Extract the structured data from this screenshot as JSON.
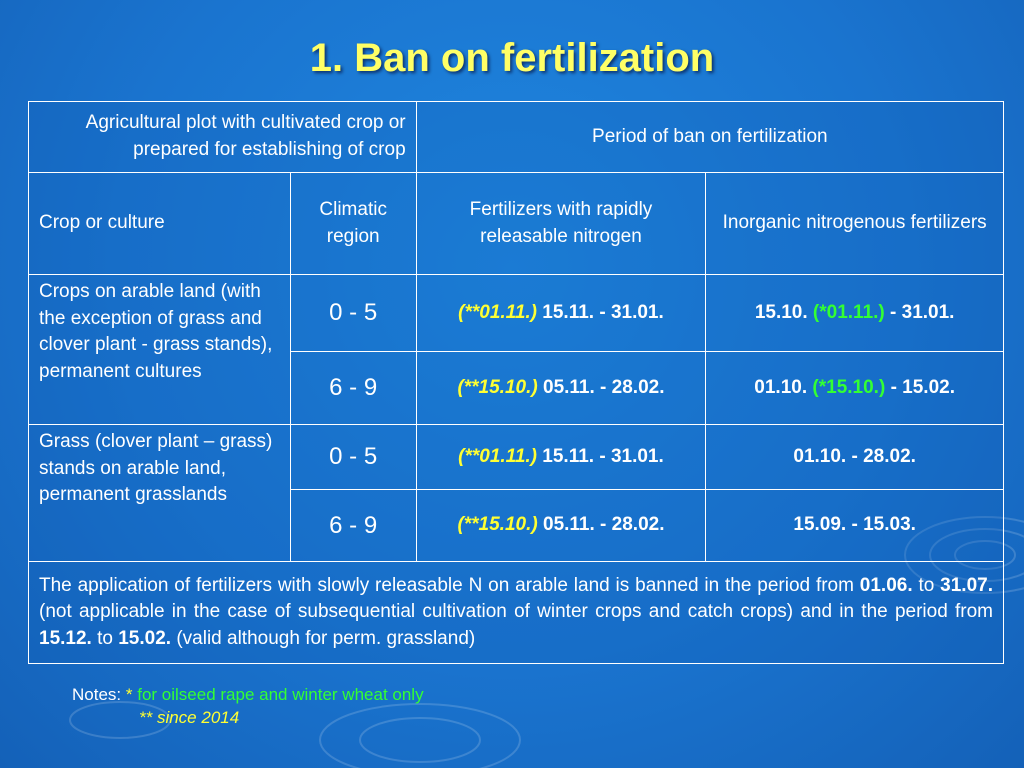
{
  "title": "1. Ban on fertilization",
  "header": {
    "plot": "Agricultural plot with cultivated crop or prepared for establishing of crop",
    "period": "Period of ban on fertilization",
    "crop": "Crop or culture",
    "climatic": "Climatic region",
    "rapid": "Fertilizers with rapidly releasable nitrogen",
    "inorganic": "Inorganic nitrogenous fertilizers"
  },
  "rows": [
    {
      "crop": "Crops on arable land (with the exception of grass and clover plant - grass stands), permanent cultures",
      "region": "0 - 5",
      "rapid_note": "(**01.11.)",
      "rapid_period": "15.11. - 31.01.",
      "inorg_start": "15.10.",
      "inorg_note": "(*01.11.)",
      "inorg_end": "- 31.01."
    },
    {
      "region": "6 - 9",
      "rapid_note": "(**15.10.)",
      "rapid_period": "05.11. - 28.02.",
      "inorg_start": "01.10.",
      "inorg_note": "(*15.10.)",
      "inorg_end": "- 15.02."
    },
    {
      "crop": "Grass (clover plant – grass) stands on arable land, permanent grasslands",
      "region": "0 - 5",
      "rapid_note": "(**01.11.)",
      "rapid_period": "15.11. - 31.01.",
      "inorg_period": "01.10. - 28.02."
    },
    {
      "region": "6 - 9",
      "rapid_note": "(**15.10.)",
      "rapid_period": "05.11. - 28.02.",
      "inorg_period": "15.09. - 15.03."
    }
  ],
  "footer": {
    "t1": "The application of fertilizers with slowly releasable N on arable land is banned in the period from ",
    "d1": "01.06.",
    "t2": " to ",
    "d2": "31.07.",
    "t3": " (not applicable in the case of subsequential cultivation of winter crops and catch crops) and in the period from ",
    "d3": "15.12.",
    "t4": " to ",
    "d4": "15.02.",
    "t5": " (valid although for perm. grassland)"
  },
  "notes": {
    "label": "Notes:",
    "star": "*",
    "note1": "for oilseed rape and winter wheat only",
    "note2": "** since 2014"
  },
  "colors": {
    "title": "#ffff66",
    "note_yellow": "#ffff33",
    "note_green": "#33ff33",
    "background": "#1a74cf"
  }
}
